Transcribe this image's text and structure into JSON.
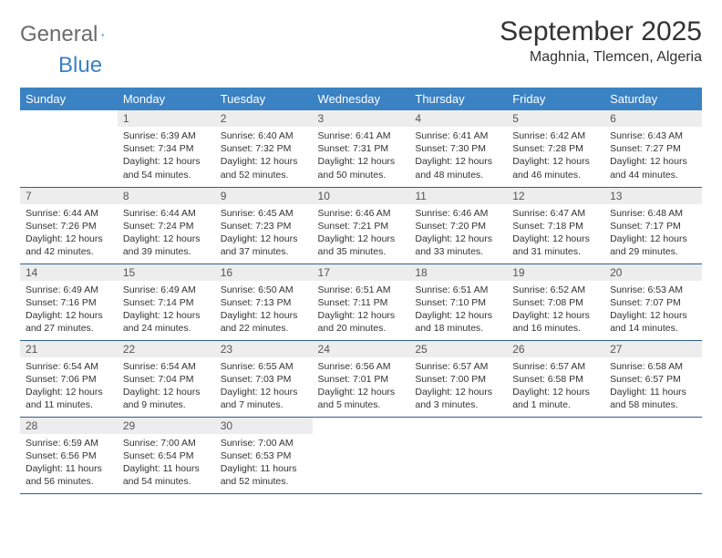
{
  "logo": {
    "text1": "General",
    "text2": "Blue"
  },
  "title": "September 2025",
  "location": "Maghnia, Tlemcen, Algeria",
  "colors": {
    "header_bg": "#3b82c4",
    "header_text": "#ffffff",
    "daynum_bg": "#ededed",
    "border": "#2f5e8a"
  },
  "weekdays": [
    "Sunday",
    "Monday",
    "Tuesday",
    "Wednesday",
    "Thursday",
    "Friday",
    "Saturday"
  ],
  "weeks": [
    [
      null,
      {
        "n": "1",
        "sr": "Sunrise: 6:39 AM",
        "ss": "Sunset: 7:34 PM",
        "dl": "Daylight: 12 hours and 54 minutes."
      },
      {
        "n": "2",
        "sr": "Sunrise: 6:40 AM",
        "ss": "Sunset: 7:32 PM",
        "dl": "Daylight: 12 hours and 52 minutes."
      },
      {
        "n": "3",
        "sr": "Sunrise: 6:41 AM",
        "ss": "Sunset: 7:31 PM",
        "dl": "Daylight: 12 hours and 50 minutes."
      },
      {
        "n": "4",
        "sr": "Sunrise: 6:41 AM",
        "ss": "Sunset: 7:30 PM",
        "dl": "Daylight: 12 hours and 48 minutes."
      },
      {
        "n": "5",
        "sr": "Sunrise: 6:42 AM",
        "ss": "Sunset: 7:28 PM",
        "dl": "Daylight: 12 hours and 46 minutes."
      },
      {
        "n": "6",
        "sr": "Sunrise: 6:43 AM",
        "ss": "Sunset: 7:27 PM",
        "dl": "Daylight: 12 hours and 44 minutes."
      }
    ],
    [
      {
        "n": "7",
        "sr": "Sunrise: 6:44 AM",
        "ss": "Sunset: 7:26 PM",
        "dl": "Daylight: 12 hours and 42 minutes."
      },
      {
        "n": "8",
        "sr": "Sunrise: 6:44 AM",
        "ss": "Sunset: 7:24 PM",
        "dl": "Daylight: 12 hours and 39 minutes."
      },
      {
        "n": "9",
        "sr": "Sunrise: 6:45 AM",
        "ss": "Sunset: 7:23 PM",
        "dl": "Daylight: 12 hours and 37 minutes."
      },
      {
        "n": "10",
        "sr": "Sunrise: 6:46 AM",
        "ss": "Sunset: 7:21 PM",
        "dl": "Daylight: 12 hours and 35 minutes."
      },
      {
        "n": "11",
        "sr": "Sunrise: 6:46 AM",
        "ss": "Sunset: 7:20 PM",
        "dl": "Daylight: 12 hours and 33 minutes."
      },
      {
        "n": "12",
        "sr": "Sunrise: 6:47 AM",
        "ss": "Sunset: 7:18 PM",
        "dl": "Daylight: 12 hours and 31 minutes."
      },
      {
        "n": "13",
        "sr": "Sunrise: 6:48 AM",
        "ss": "Sunset: 7:17 PM",
        "dl": "Daylight: 12 hours and 29 minutes."
      }
    ],
    [
      {
        "n": "14",
        "sr": "Sunrise: 6:49 AM",
        "ss": "Sunset: 7:16 PM",
        "dl": "Daylight: 12 hours and 27 minutes."
      },
      {
        "n": "15",
        "sr": "Sunrise: 6:49 AM",
        "ss": "Sunset: 7:14 PM",
        "dl": "Daylight: 12 hours and 24 minutes."
      },
      {
        "n": "16",
        "sr": "Sunrise: 6:50 AM",
        "ss": "Sunset: 7:13 PM",
        "dl": "Daylight: 12 hours and 22 minutes."
      },
      {
        "n": "17",
        "sr": "Sunrise: 6:51 AM",
        "ss": "Sunset: 7:11 PM",
        "dl": "Daylight: 12 hours and 20 minutes."
      },
      {
        "n": "18",
        "sr": "Sunrise: 6:51 AM",
        "ss": "Sunset: 7:10 PM",
        "dl": "Daylight: 12 hours and 18 minutes."
      },
      {
        "n": "19",
        "sr": "Sunrise: 6:52 AM",
        "ss": "Sunset: 7:08 PM",
        "dl": "Daylight: 12 hours and 16 minutes."
      },
      {
        "n": "20",
        "sr": "Sunrise: 6:53 AM",
        "ss": "Sunset: 7:07 PM",
        "dl": "Daylight: 12 hours and 14 minutes."
      }
    ],
    [
      {
        "n": "21",
        "sr": "Sunrise: 6:54 AM",
        "ss": "Sunset: 7:06 PM",
        "dl": "Daylight: 12 hours and 11 minutes."
      },
      {
        "n": "22",
        "sr": "Sunrise: 6:54 AM",
        "ss": "Sunset: 7:04 PM",
        "dl": "Daylight: 12 hours and 9 minutes."
      },
      {
        "n": "23",
        "sr": "Sunrise: 6:55 AM",
        "ss": "Sunset: 7:03 PM",
        "dl": "Daylight: 12 hours and 7 minutes."
      },
      {
        "n": "24",
        "sr": "Sunrise: 6:56 AM",
        "ss": "Sunset: 7:01 PM",
        "dl": "Daylight: 12 hours and 5 minutes."
      },
      {
        "n": "25",
        "sr": "Sunrise: 6:57 AM",
        "ss": "Sunset: 7:00 PM",
        "dl": "Daylight: 12 hours and 3 minutes."
      },
      {
        "n": "26",
        "sr": "Sunrise: 6:57 AM",
        "ss": "Sunset: 6:58 PM",
        "dl": "Daylight: 12 hours and 1 minute."
      },
      {
        "n": "27",
        "sr": "Sunrise: 6:58 AM",
        "ss": "Sunset: 6:57 PM",
        "dl": "Daylight: 11 hours and 58 minutes."
      }
    ],
    [
      {
        "n": "28",
        "sr": "Sunrise: 6:59 AM",
        "ss": "Sunset: 6:56 PM",
        "dl": "Daylight: 11 hours and 56 minutes."
      },
      {
        "n": "29",
        "sr": "Sunrise: 7:00 AM",
        "ss": "Sunset: 6:54 PM",
        "dl": "Daylight: 11 hours and 54 minutes."
      },
      {
        "n": "30",
        "sr": "Sunrise: 7:00 AM",
        "ss": "Sunset: 6:53 PM",
        "dl": "Daylight: 11 hours and 52 minutes."
      },
      null,
      null,
      null,
      null
    ]
  ]
}
